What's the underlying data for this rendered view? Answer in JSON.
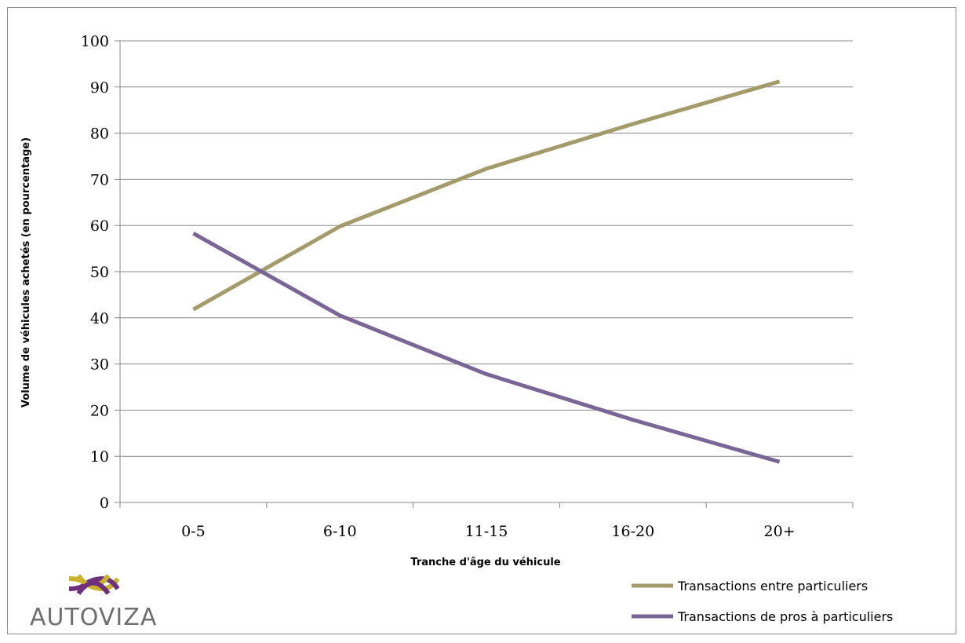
{
  "chart_data": {
    "type": "line",
    "categories": [
      "0-5",
      "6-10",
      "11-15",
      "16-20",
      "20+"
    ],
    "series": [
      {
        "name": "Transactions entre particuliers",
        "color": "#a49b6b",
        "values": [
          41.8,
          59.8,
          72.3,
          82.0,
          91.2
        ]
      },
      {
        "name": "Transactions de pros à particuliers",
        "color": "#7a6696",
        "values": [
          58.3,
          40.5,
          27.8,
          17.9,
          8.8
        ]
      }
    ],
    "xlabel": "Tranche d'âge du véhicule",
    "ylabel": "Volume de véhicules achetés (en pourcentage)",
    "ylim": [
      0,
      100
    ],
    "yticks": [
      0,
      10,
      20,
      30,
      40,
      50,
      60,
      70,
      80,
      90,
      100
    ],
    "grid": true,
    "legend": "bottom-right"
  },
  "logo": {
    "text": "AUTOVIZA",
    "colors": {
      "gold": "#c9b22c",
      "purple": "#6e2f7d",
      "text": "#6f6f6f"
    }
  },
  "style": {
    "grid_color": "#888888",
    "axis_color": "#888888"
  }
}
